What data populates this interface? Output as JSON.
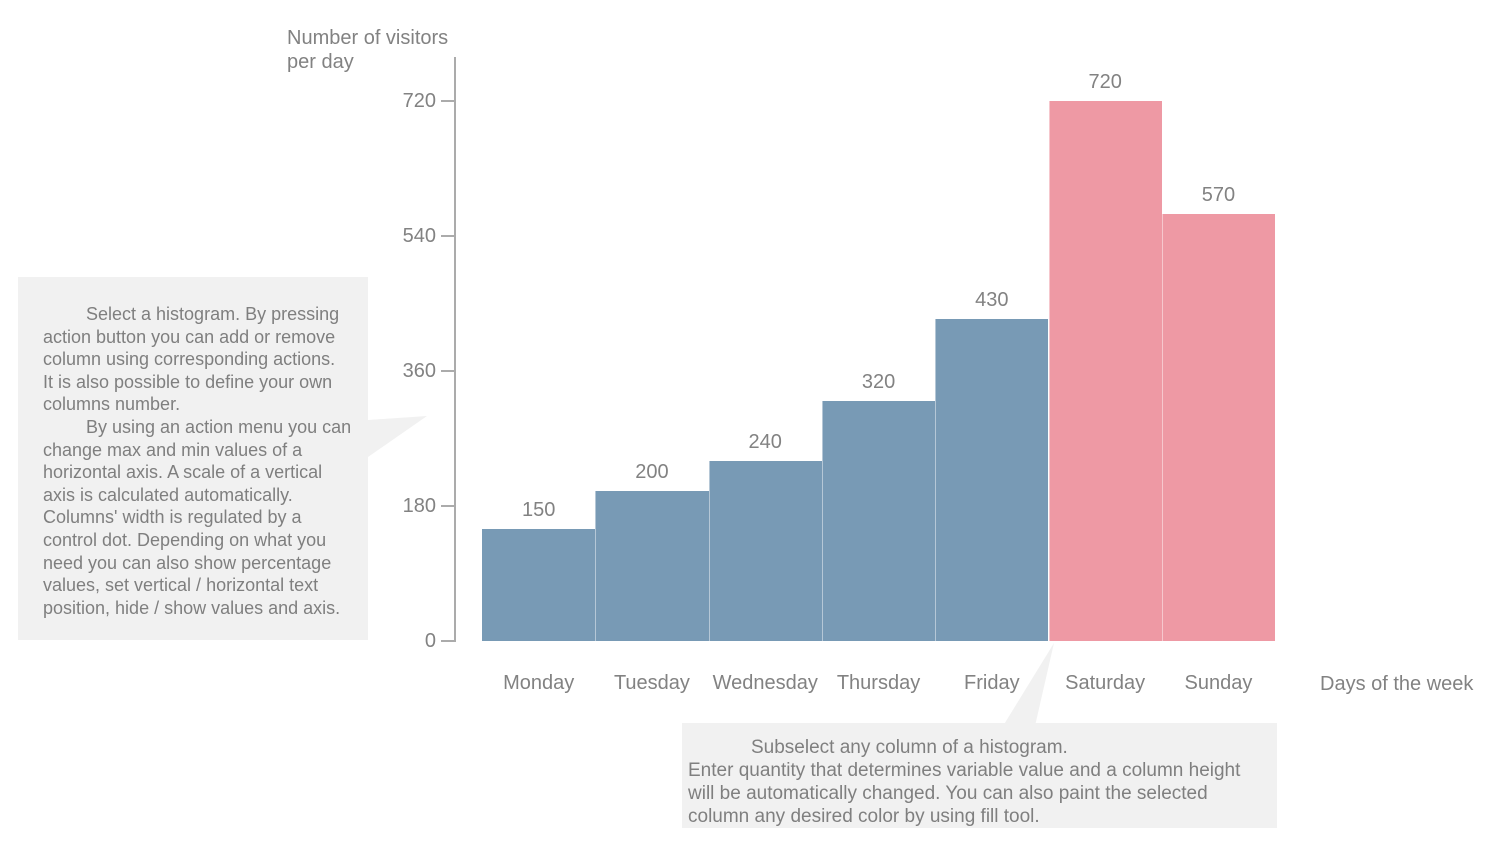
{
  "colors": {
    "bar_blue": "#789AB5",
    "bar_pink": "#EE99A4",
    "text_gray": "#828282",
    "axis_gray": "#ABABAB",
    "note_background": "#F1F1F1"
  },
  "chart_data": {
    "type": "bar",
    "title": "",
    "ylabel_lines": [
      "Number of visitors",
      "per day"
    ],
    "xlabel": "Days of the week",
    "categories": [
      "Monday",
      "Tuesday",
      "Wednesday",
      "Thursday",
      "Friday",
      "Saturday",
      "Sunday"
    ],
    "values": [
      150,
      200,
      240,
      320,
      430,
      720,
      570
    ],
    "bar_colors": [
      "#789AB5",
      "#789AB5",
      "#789AB5",
      "#789AB5",
      "#789AB5",
      "#EE99A4",
      "#EE99A4"
    ],
    "value_labels": [
      "150",
      "200",
      "240",
      "320",
      "430",
      "720",
      "570"
    ],
    "yticks": [
      "0",
      "180",
      "360",
      "540",
      "720"
    ],
    "ylim": [
      0,
      720
    ],
    "grid": false,
    "legend": null,
    "value_labels_shown": true
  },
  "annotations": {
    "left_note_lines": [
      {
        "text": "Select a histogram. By pressing",
        "indent": 1
      },
      {
        "text": "action button you can add or remove",
        "indent": 0
      },
      {
        "text": "column using corresponding actions.",
        "indent": 0
      },
      {
        "text": "It is also possible to define your own",
        "indent": 0
      },
      {
        "text": "columns number.",
        "indent": 0
      },
      {
        "text": "By using an action menu you can",
        "indent": 1
      },
      {
        "text": "change max and min values of a",
        "indent": 0
      },
      {
        "text": "horizontal axis. A scale of a vertical",
        "indent": 0
      },
      {
        "text": "axis is calculated automatically.",
        "indent": 0
      },
      {
        "text": "Columns' width is regulated by a",
        "indent": 0
      },
      {
        "text": "control dot. Depending on what you",
        "indent": 0
      },
      {
        "text": "need you can also show percentage",
        "indent": 0
      },
      {
        "text": "values, set vertical / horizontal text",
        "indent": 0
      },
      {
        "text": "position, hide / show values and axis.",
        "indent": 0
      }
    ],
    "bottom_note_lines": [
      {
        "text": "Subselect any column of a histogram.",
        "indent": 2
      },
      {
        "text": "Enter quantity that determines variable value and a column height",
        "indent": 0
      },
      {
        "text": "will be automatically changed. You can also paint the selected",
        "indent": 0
      },
      {
        "text": "column any desired color by using fill tool.",
        "indent": 0
      }
    ]
  }
}
